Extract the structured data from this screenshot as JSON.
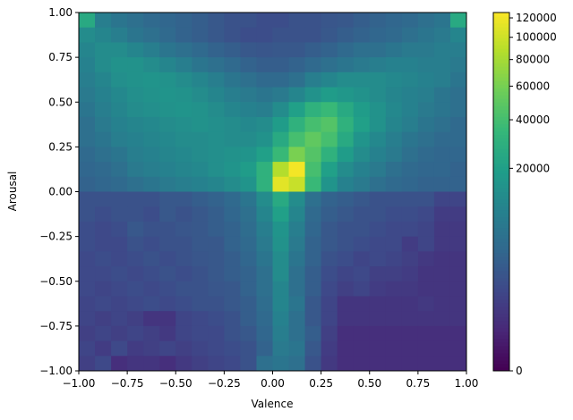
{
  "chart_data": {
    "type": "heatmap",
    "xlabel": "Valence",
    "ylabel": "Arousal",
    "xlim": [
      -1,
      1
    ],
    "ylim": [
      -1,
      1
    ],
    "xticks": [
      {
        "value": -1,
        "label": "−1.00"
      },
      {
        "value": -0.75,
        "label": "−0.75"
      },
      {
        "value": -0.5,
        "label": "−0.50"
      },
      {
        "value": -0.25,
        "label": "−0.25"
      },
      {
        "value": 0,
        "label": "0.00"
      },
      {
        "value": 0.25,
        "label": "0.25"
      },
      {
        "value": 0.5,
        "label": "0.50"
      },
      {
        "value": 0.75,
        "label": "0.75"
      },
      {
        "value": 1,
        "label": "1.00"
      }
    ],
    "yticks": [
      {
        "value": -1,
        "label": "−1.00"
      },
      {
        "value": -0.75,
        "label": "−0.75"
      },
      {
        "value": -0.5,
        "label": "−0.50"
      },
      {
        "value": -0.25,
        "label": "−0.25"
      },
      {
        "value": 0,
        "label": "0.00"
      },
      {
        "value": 0.25,
        "label": "0.25"
      },
      {
        "value": 0.5,
        "label": "0.50"
      },
      {
        "value": 0.75,
        "label": "0.75"
      },
      {
        "value": 1,
        "label": "1.00"
      }
    ],
    "colormap": "viridis",
    "norm": "power",
    "gamma": 0.31,
    "clim": [
      0,
      126000
    ],
    "cticks": [
      0,
      20000,
      40000,
      60000,
      80000,
      100000,
      120000
    ],
    "values": [
      [
        25000,
        8000,
        6000,
        5000,
        4000,
        3500,
        3000,
        2500,
        2000,
        1500,
        1500,
        1200,
        1200,
        1500,
        1500,
        1800,
        2000,
        2500,
        3000,
        3500,
        4000,
        5000,
        6000,
        25000
      ],
      [
        12000,
        10000,
        8000,
        6000,
        5000,
        4000,
        3000,
        2500,
        2000,
        1500,
        1200,
        1200,
        1500,
        1500,
        1500,
        2000,
        2500,
        3000,
        3500,
        4000,
        5000,
        6000,
        7000,
        10000
      ],
      [
        10000,
        12000,
        12000,
        10000,
        8000,
        6000,
        5000,
        4000,
        3000,
        2500,
        2000,
        1800,
        2000,
        2000,
        2500,
        3000,
        4000,
        5000,
        5000,
        6000,
        7000,
        7000,
        8000,
        8000
      ],
      [
        9000,
        12000,
        14000,
        14000,
        12000,
        10000,
        8000,
        6000,
        5000,
        4000,
        3000,
        2500,
        2500,
        3000,
        4000,
        5000,
        6000,
        7000,
        8000,
        9000,
        9000,
        8000,
        8000,
        7000
      ],
      [
        8000,
        10000,
        13000,
        14000,
        15000,
        14000,
        12000,
        10000,
        8000,
        6000,
        5000,
        4000,
        4000,
        5000,
        8000,
        10000,
        12000,
        12000,
        12000,
        11000,
        10000,
        9000,
        8000,
        6000
      ],
      [
        7000,
        9000,
        11000,
        13000,
        14000,
        15000,
        14000,
        12000,
        10000,
        8000,
        7000,
        6000,
        7000,
        10000,
        14000,
        18000,
        16000,
        14000,
        12000,
        10000,
        9000,
        8000,
        6000,
        5000
      ],
      [
        6000,
        8000,
        10000,
        12000,
        13000,
        14000,
        15000,
        14000,
        12000,
        10000,
        9000,
        8000,
        12000,
        20000,
        30000,
        35000,
        25000,
        18000,
        14000,
        11000,
        9000,
        7000,
        6000,
        5000
      ],
      [
        5000,
        7000,
        9000,
        10000,
        11000,
        12000,
        13000,
        14000,
        13000,
        12000,
        11000,
        12000,
        18000,
        30000,
        40000,
        45000,
        30000,
        20000,
        14000,
        10000,
        8000,
        6000,
        5000,
        4000
      ],
      [
        5000,
        6000,
        8000,
        9000,
        10000,
        11000,
        12000,
        12000,
        13000,
        12000,
        12000,
        14000,
        25000,
        40000,
        50000,
        40000,
        25000,
        15000,
        11000,
        8000,
        6000,
        5000,
        4000,
        4000
      ],
      [
        4000,
        5000,
        6000,
        8000,
        9000,
        10000,
        11000,
        12000,
        13000,
        14000,
        15000,
        20000,
        35000,
        60000,
        45000,
        30000,
        18000,
        12000,
        9000,
        7000,
        5000,
        4000,
        3500,
        3500
      ],
      [
        3500,
        4000,
        5000,
        7000,
        8000,
        9000,
        10000,
        11000,
        13000,
        15000,
        18000,
        30000,
        85000,
        120000,
        40000,
        20000,
        12000,
        9000,
        7000,
        5000,
        4000,
        3500,
        3500,
        3000
      ],
      [
        3000,
        3500,
        4000,
        5000,
        6000,
        7000,
        8000,
        9000,
        10000,
        12000,
        15000,
        30000,
        110000,
        95000,
        35000,
        15000,
        9000,
        7000,
        5000,
        4000,
        3500,
        3000,
        3000,
        3000
      ],
      [
        1500,
        1500,
        1500,
        1500,
        1500,
        2000,
        2000,
        2500,
        3000,
        4000,
        6000,
        12000,
        25000,
        12000,
        5000,
        3000,
        2500,
        2000,
        1500,
        1500,
        1500,
        1500,
        800,
        800
      ],
      [
        1500,
        1200,
        1500,
        1500,
        1200,
        2000,
        1500,
        2000,
        2500,
        3500,
        5000,
        10000,
        20000,
        10000,
        4000,
        2500,
        2000,
        1500,
        1500,
        1200,
        1200,
        1000,
        500,
        500
      ],
      [
        1200,
        1000,
        1200,
        2000,
        1500,
        1500,
        1800,
        2000,
        2500,
        3000,
        4500,
        8000,
        15000,
        8000,
        3500,
        2000,
        1500,
        1500,
        1200,
        1000,
        1000,
        800,
        400,
        400
      ],
      [
        1200,
        1000,
        1000,
        1500,
        1200,
        1500,
        1500,
        2000,
        2000,
        3000,
        4000,
        7000,
        14000,
        7000,
        3000,
        2000,
        1500,
        1200,
        1000,
        1000,
        500,
        800,
        400,
        400
      ],
      [
        1000,
        1200,
        1000,
        1200,
        1500,
        1200,
        1500,
        1800,
        2000,
        2500,
        3500,
        6000,
        12000,
        6000,
        3000,
        1500,
        1200,
        800,
        1000,
        800,
        600,
        400,
        300,
        300
      ],
      [
        1000,
        1000,
        1200,
        1000,
        1200,
        1500,
        1200,
        1500,
        2000,
        2500,
        3000,
        5000,
        12000,
        5000,
        2500,
        1200,
        800,
        1000,
        600,
        600,
        500,
        300,
        300,
        300
      ],
      [
        1000,
        800,
        1000,
        1200,
        1000,
        1200,
        1500,
        1500,
        1800,
        2000,
        3000,
        5000,
        10000,
        5000,
        2500,
        1000,
        600,
        800,
        500,
        400,
        400,
        300,
        300,
        300
      ],
      [
        800,
        1000,
        800,
        1000,
        1200,
        1000,
        1200,
        1500,
        1500,
        2000,
        2500,
        4500,
        10000,
        6000,
        2000,
        800,
        300,
        300,
        300,
        300,
        300,
        400,
        300,
        300
      ],
      [
        800,
        600,
        800,
        600,
        300,
        300,
        800,
        1000,
        1200,
        1500,
        2500,
        4000,
        9000,
        5000,
        2000,
        800,
        300,
        300,
        300,
        300,
        300,
        300,
        300,
        300
      ],
      [
        600,
        800,
        600,
        800,
        600,
        400,
        800,
        1000,
        1000,
        1500,
        2000,
        3500,
        8000,
        5000,
        2500,
        600,
        200,
        200,
        200,
        200,
        200,
        200,
        200,
        200
      ],
      [
        800,
        500,
        1000,
        500,
        600,
        800,
        600,
        800,
        1000,
        1200,
        1500,
        3000,
        7000,
        6000,
        2000,
        500,
        200,
        200,
        200,
        200,
        200,
        200,
        200,
        200
      ],
      [
        600,
        1000,
        200,
        300,
        300,
        200,
        400,
        600,
        800,
        1000,
        1500,
        5000,
        6000,
        5000,
        1500,
        400,
        200,
        200,
        200,
        200,
        200,
        200,
        200,
        200
      ]
    ]
  }
}
